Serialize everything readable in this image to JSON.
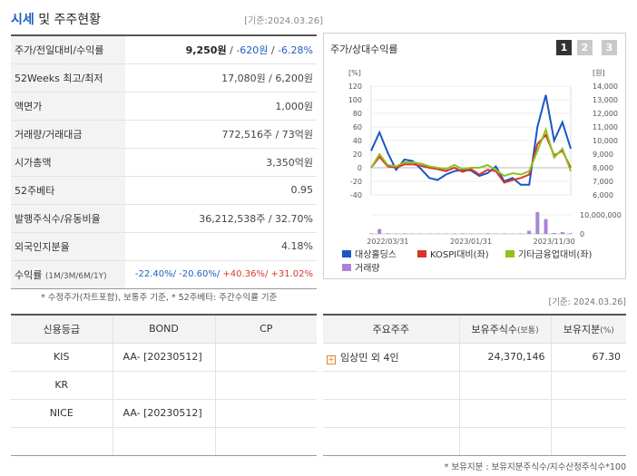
{
  "header": {
    "title_accent": "시세",
    "title_rest": " 및 주주현황",
    "date": "[기준:2024.03.26]"
  },
  "price_table": {
    "rows": [
      {
        "label": "주가/전일대비/수익률"
      },
      {
        "label": "52Weeks 최고/최저",
        "value": "17,080원 / 6,200원"
      },
      {
        "label": "액면가",
        "value": "1,000원"
      },
      {
        "label": "거래량/거래대금",
        "value": "772,516주 / 73억원"
      },
      {
        "label": "시가총액",
        "value": "3,350억원"
      },
      {
        "label": "52주베타",
        "value": "0.95"
      },
      {
        "label": "발행주식수/유동비율",
        "value": "36,212,538주 / 32.70%"
      },
      {
        "label": "외국인지분율",
        "value": "4.18%"
      },
      {
        "label": "수익률",
        "label_small": "(1M/3M/6M/1Y)"
      }
    ],
    "price": "9,250원",
    "change": "-620원",
    "change_pct": "-6.28%",
    "sep": " / ",
    "returns": [
      "-22.40%/",
      " -20.60%/",
      " +40.36%/",
      " +31.02%"
    ]
  },
  "left_note": "* 수정주가(차트포함), 보통주 기준, * 52주베타: 주간수익률 기준",
  "chart_panel": {
    "title": "주가/상대수익률",
    "period_buttons": [
      "1",
      "2",
      "3"
    ],
    "active_button": "1"
  },
  "chart_data": {
    "type": "line",
    "y_left_unit": "[%]",
    "y_right_unit": "[원]",
    "y_left_ticks": [
      120,
      100,
      80,
      60,
      40,
      20,
      0,
      -20,
      -40
    ],
    "y_right_ticks": [
      "14,000",
      "13,000",
      "12,000",
      "11,000",
      "10,000",
      "9,000",
      "8,000",
      "7,000",
      "6,000"
    ],
    "ylim_left": [
      -40,
      120
    ],
    "volume_tick_labels": [
      "10,000,000",
      "0"
    ],
    "volume_max": 14000000,
    "x_tick_labels": [
      "2022/03/31",
      "2023/01/31",
      "2023/11/30"
    ],
    "x_tick_index": [
      2,
      12,
      22
    ],
    "series": [
      {
        "name": "대상홀딩스",
        "color": "#1a56c6",
        "values": [
          25,
          52,
          22,
          -3,
          12,
          10,
          -2,
          -15,
          -18,
          -10,
          -5,
          -3,
          -4,
          -12,
          -8,
          2,
          -20,
          -15,
          -25,
          -25,
          60,
          107,
          40,
          67,
          28
        ]
      },
      {
        "name": "KOSPI대비(좌)",
        "color": "#d8342a",
        "values": [
          0,
          16,
          2,
          0,
          5,
          5,
          3,
          0,
          -2,
          -5,
          0,
          -6,
          -2,
          -10,
          -3,
          -5,
          -22,
          -18,
          -15,
          -10,
          35,
          48,
          18,
          25,
          0
        ]
      },
      {
        "name": "기타금융업대비(좌)",
        "color": "#8ec21f",
        "values": [
          0,
          20,
          4,
          2,
          8,
          8,
          6,
          2,
          0,
          -2,
          4,
          -2,
          0,
          0,
          4,
          -3,
          -12,
          -8,
          -10,
          -5,
          25,
          56,
          15,
          28,
          -5
        ]
      },
      {
        "name": "거래량",
        "color": "#a984d6",
        "kind": "volume",
        "values": [
          300000,
          2800000,
          300000,
          200000,
          300000,
          200000,
          200000,
          200000,
          200000,
          200000,
          200000,
          300000,
          200000,
          200000,
          300000,
          200000,
          300000,
          200000,
          200000,
          1800000,
          12500000,
          8500000,
          500000,
          1000000,
          400000
        ]
      }
    ]
  },
  "date_right": "[기준: 2024.03.26]",
  "credit": {
    "headers": [
      "신용등급",
      "BOND",
      "CP"
    ],
    "rows": [
      [
        "KIS",
        "AA-  [20230512]",
        ""
      ],
      [
        "KR",
        "",
        ""
      ],
      [
        "NICE",
        "AA-  [20230512]",
        ""
      ],
      [
        "",
        "",
        ""
      ]
    ]
  },
  "holders": {
    "headers": [
      "주요주주",
      "보유주식수",
      "(보통)",
      "보유지분",
      "(%)"
    ],
    "rows": [
      {
        "name": "임상민 외 4인",
        "shares": "24,370,146",
        "pct": "67.30"
      }
    ]
  },
  "right_note": "* 보유지분 : 보유지분주식수/지수산정주식수*100"
}
